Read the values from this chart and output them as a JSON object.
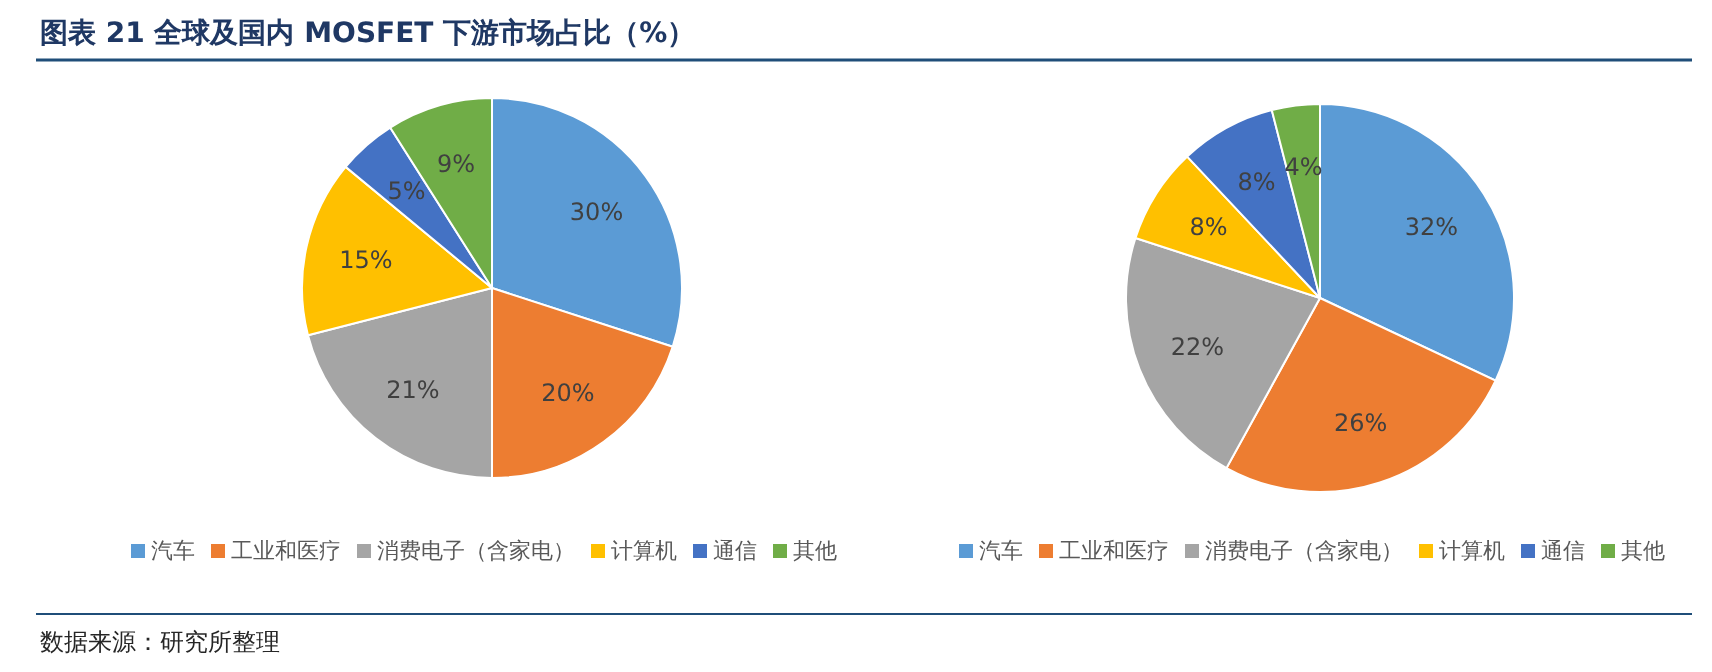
{
  "chart_data": [
    {
      "type": "pie",
      "title": "图表 21 全球及国内 MOSFET 下游市场占比（%）",
      "categories": [
        "汽车",
        "工业和医疗",
        "消费电子（含家电）",
        "计算机",
        "通信",
        "其他"
      ],
      "values": [
        30,
        20,
        21,
        15,
        5,
        9
      ],
      "value_labels": [
        "30%",
        "20%",
        "21%",
        "15%",
        "5%",
        "9%"
      ],
      "colors": [
        "#5b9bd5",
        "#ed7d31",
        "#a5a5a5",
        "#ffc000",
        "#4472c4",
        "#70ad47"
      ],
      "legend": "bottom"
    },
    {
      "type": "pie",
      "categories": [
        "汽车",
        "工业和医疗",
        "消费电子（含家电）",
        "计算机",
        "通信",
        "其他"
      ],
      "values": [
        32,
        26,
        22,
        8,
        8,
        4
      ],
      "value_labels": [
        "32%",
        "26%",
        "22%",
        "8%",
        "8%",
        "4%"
      ],
      "colors": [
        "#5b9bd5",
        "#ed7d31",
        "#a5a5a5",
        "#ffc000",
        "#4472c4",
        "#70ad47"
      ],
      "legend": "bottom",
      "annotations": [
        "数据来源：研究所整理"
      ]
    }
  ]
}
